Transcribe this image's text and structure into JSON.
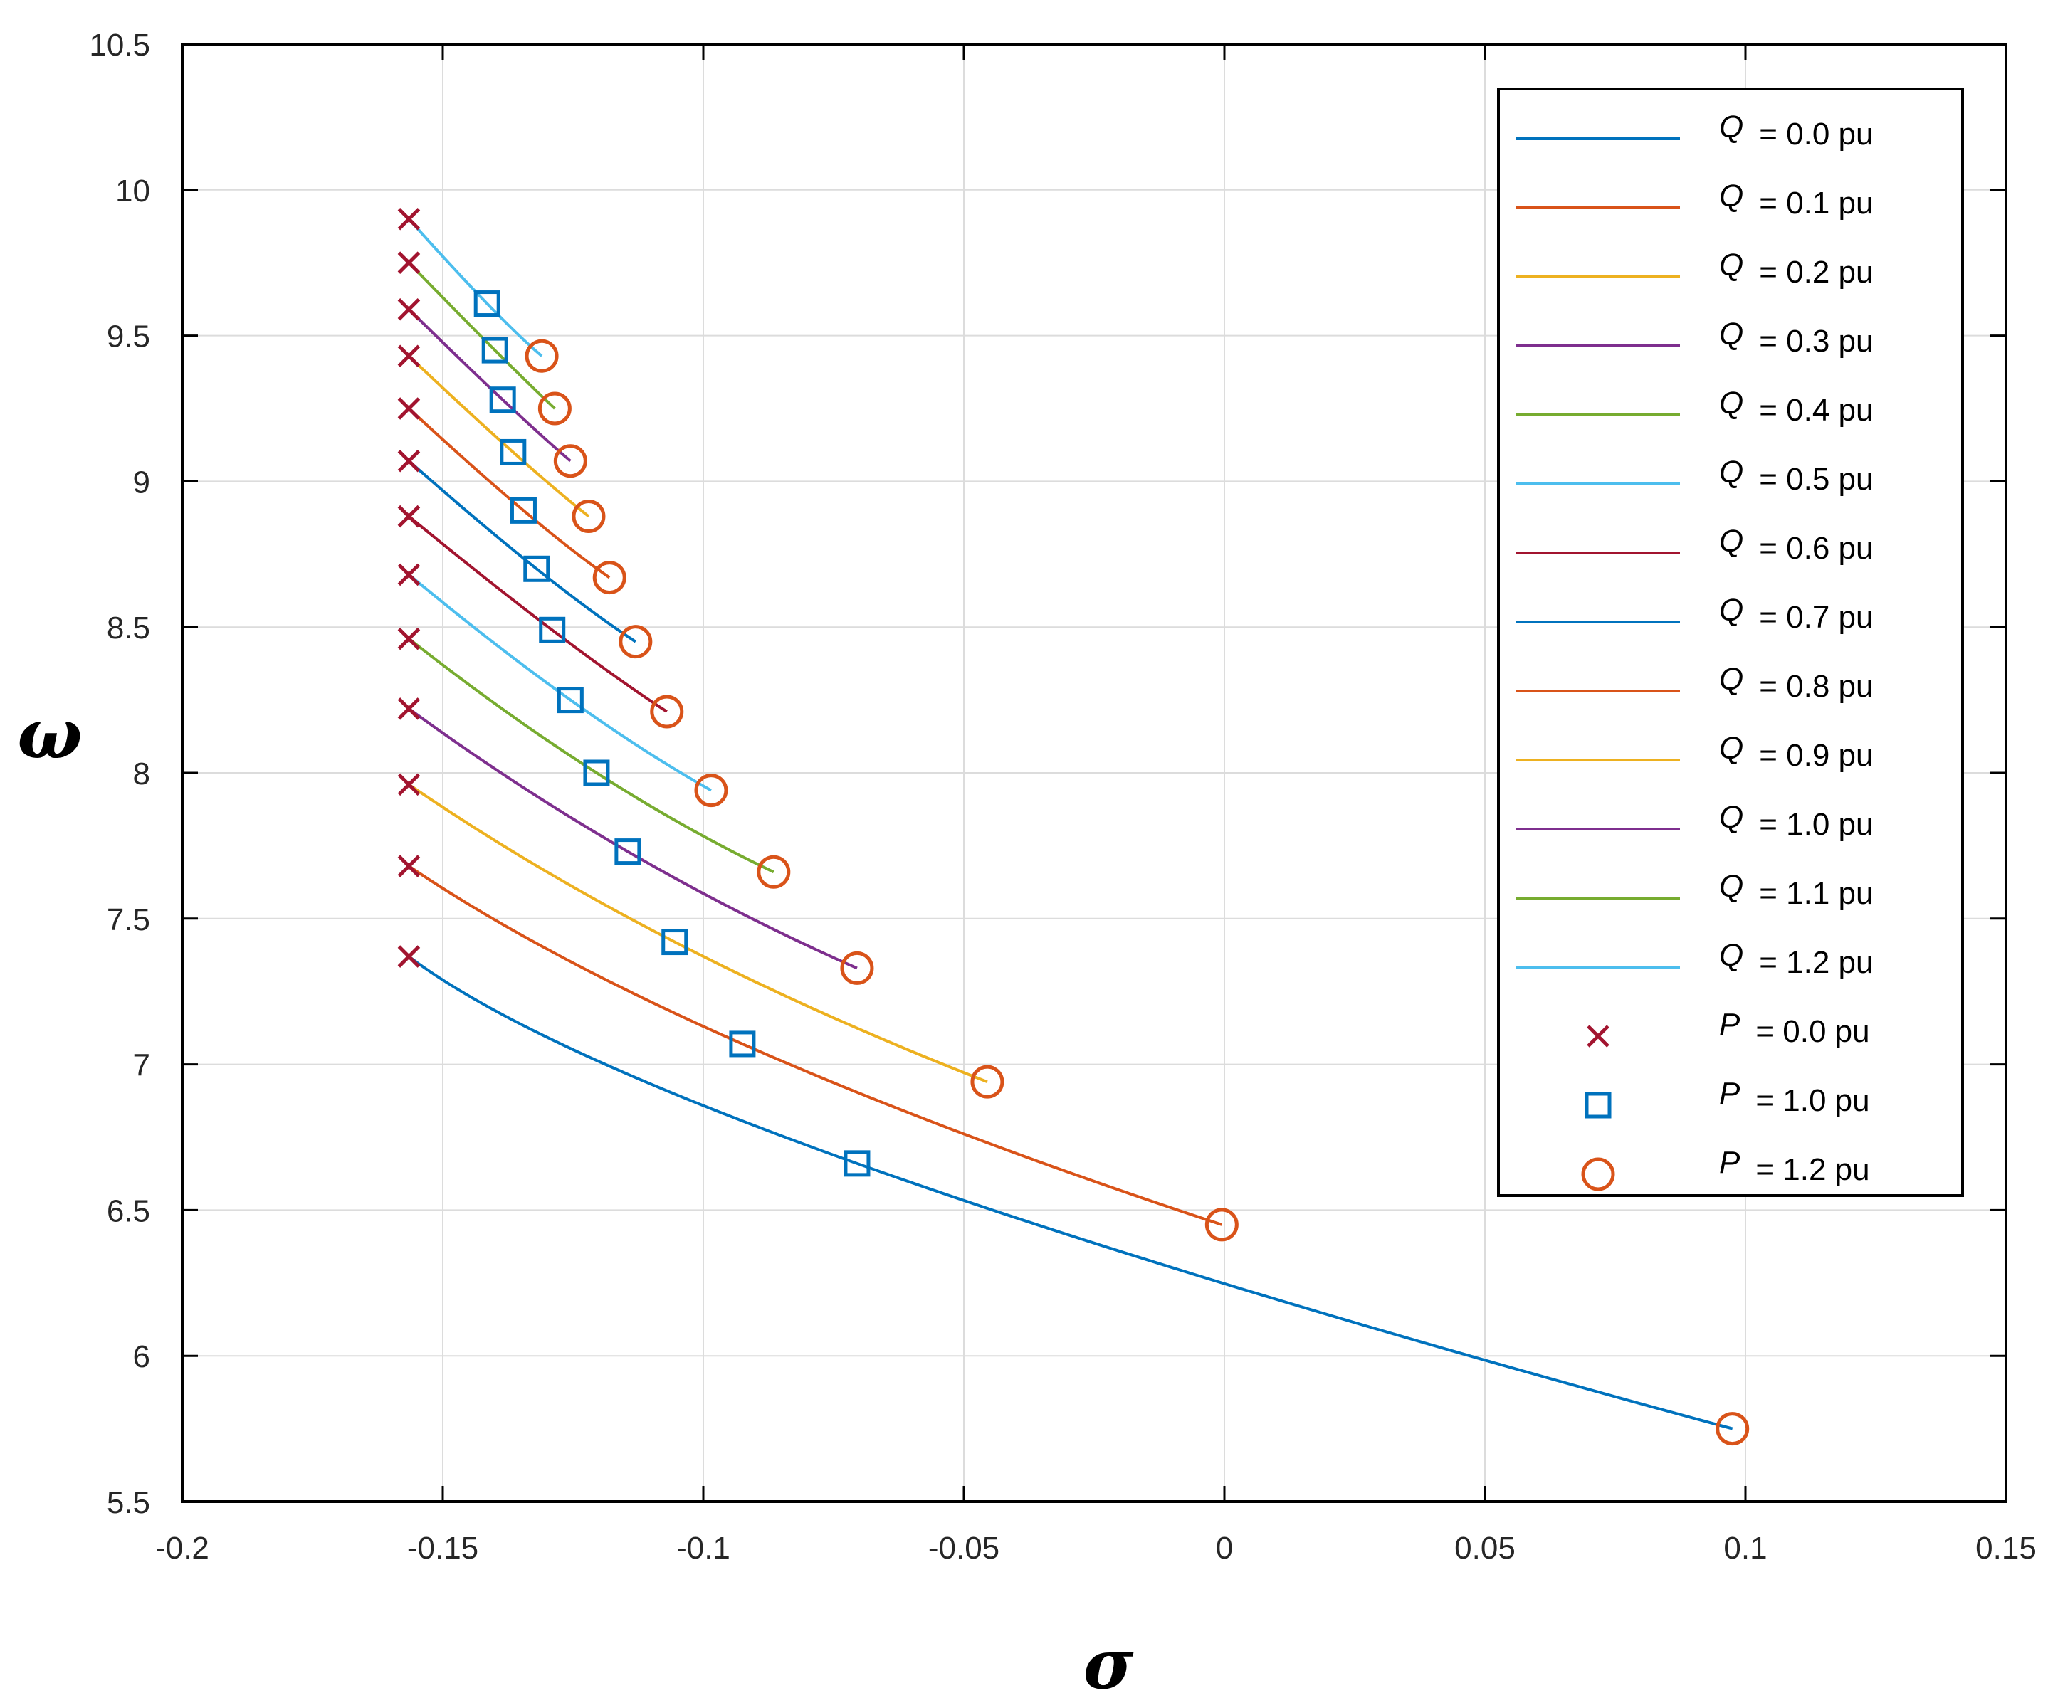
{
  "chart_data": {
    "type": "line",
    "title": "",
    "xlabel": "σ",
    "ylabel": "ω",
    "xlim": [
      -0.2,
      0.15
    ],
    "ylim": [
      5.5,
      10.5
    ],
    "grid": true,
    "legend_position": "top-right",
    "x_ticks": [
      -0.2,
      -0.15,
      -0.1,
      -0.05,
      0,
      0.05,
      0.1,
      0.15
    ],
    "x_tick_labels": [
      "-0.2",
      "-0.15",
      "-0.1",
      "-0.05",
      "0",
      "0.05",
      "0.1",
      "0.15"
    ],
    "y_ticks": [
      5.5,
      6,
      6.5,
      7,
      7.5,
      8,
      8.5,
      9,
      9.5,
      10,
      10.5
    ],
    "y_tick_labels": [
      "5.5",
      "6",
      "6.5",
      "7",
      "7.5",
      "8",
      "8.5",
      "9",
      "9.5",
      "10",
      "10.5"
    ],
    "series": [
      {
        "name": "Q = 0.0 pu",
        "var": "Q",
        "value_label": "= 0.0 pu",
        "color": "#0072BD",
        "start": [
          -0.1565,
          7.37
        ],
        "mid": [
          -0.0705,
          6.66
        ],
        "end": [
          0.0975,
          5.75
        ]
      },
      {
        "name": "Q = 0.1 pu",
        "var": "Q",
        "value_label": "= 0.1 pu",
        "color": "#D95319",
        "start": [
          -0.1565,
          7.68
        ],
        "mid": [
          -0.0925,
          7.07
        ],
        "end": [
          -0.0005,
          6.45
        ]
      },
      {
        "name": "Q = 0.2 pu",
        "var": "Q",
        "value_label": "= 0.2 pu",
        "color": "#EDB120",
        "start": [
          -0.1565,
          7.96
        ],
        "mid": [
          -0.1055,
          7.42
        ],
        "end": [
          -0.0455,
          6.94
        ]
      },
      {
        "name": "Q = 0.3 pu",
        "var": "Q",
        "value_label": "= 0.3 pu",
        "color": "#7E2F8E",
        "start": [
          -0.1565,
          8.22
        ],
        "mid": [
          -0.1145,
          7.73
        ],
        "end": [
          -0.0705,
          7.33
        ]
      },
      {
        "name": "Q = 0.4 pu",
        "var": "Q",
        "value_label": "= 0.4 pu",
        "color": "#77AC30",
        "start": [
          -0.1565,
          8.46
        ],
        "mid": [
          -0.1205,
          8.0
        ],
        "end": [
          -0.0865,
          7.66
        ]
      },
      {
        "name": "Q = 0.5 pu",
        "var": "Q",
        "value_label": "= 0.5 pu",
        "color": "#4DBEEE",
        "start": [
          -0.1565,
          8.68
        ],
        "mid": [
          -0.1255,
          8.25
        ],
        "end": [
          -0.0985,
          7.94
        ]
      },
      {
        "name": "Q = 0.6 pu",
        "var": "Q",
        "value_label": "= 0.6 pu",
        "color": "#A2142F",
        "start": [
          -0.1565,
          8.88
        ],
        "mid": [
          -0.129,
          8.49
        ],
        "end": [
          -0.107,
          8.21
        ]
      },
      {
        "name": "Q = 0.7 pu",
        "var": "Q",
        "value_label": "= 0.7 pu",
        "color": "#0072BD",
        "start": [
          -0.1565,
          9.07
        ],
        "mid": [
          -0.132,
          8.7
        ],
        "end": [
          -0.113,
          8.45
        ]
      },
      {
        "name": "Q = 0.8 pu",
        "var": "Q",
        "value_label": "= 0.8 pu",
        "color": "#D95319",
        "start": [
          -0.1565,
          9.25
        ],
        "mid": [
          -0.1345,
          8.9
        ],
        "end": [
          -0.118,
          8.67
        ]
      },
      {
        "name": "Q = 0.9 pu",
        "var": "Q",
        "value_label": "= 0.9 pu",
        "color": "#EDB120",
        "start": [
          -0.1565,
          9.43
        ],
        "mid": [
          -0.1365,
          9.1
        ],
        "end": [
          -0.122,
          8.88
        ]
      },
      {
        "name": "Q = 1.0 pu",
        "var": "Q",
        "value_label": "= 1.0 pu",
        "color": "#7E2F8E",
        "start": [
          -0.1565,
          9.59
        ],
        "mid": [
          -0.1385,
          9.28
        ],
        "end": [
          -0.1255,
          9.07
        ]
      },
      {
        "name": "Q = 1.1 pu",
        "var": "Q",
        "value_label": "= 1.1 pu",
        "color": "#77AC30",
        "start": [
          -0.1565,
          9.75
        ],
        "mid": [
          -0.14,
          9.45
        ],
        "end": [
          -0.1285,
          9.25
        ]
      },
      {
        "name": "Q = 1.2 pu",
        "var": "Q",
        "value_label": "= 1.2 pu",
        "color": "#4DBEEE",
        "start": [
          -0.1565,
          9.9
        ],
        "mid": [
          -0.1415,
          9.61
        ],
        "end": [
          -0.131,
          9.43
        ]
      }
    ],
    "markers": [
      {
        "name": "P = 0.0 pu",
        "var": "P",
        "value_label": "= 0.0 pu",
        "shape": "x",
        "color": "#A2142F",
        "point_key": "start"
      },
      {
        "name": "P = 1.0 pu",
        "var": "P",
        "value_label": "= 1.0 pu",
        "shape": "square",
        "color": "#0072BD",
        "point_key": "mid"
      },
      {
        "name": "P = 1.2 pu",
        "var": "P",
        "value_label": "= 1.2 pu",
        "shape": "circle",
        "color": "#D95319",
        "point_key": "end"
      }
    ]
  }
}
